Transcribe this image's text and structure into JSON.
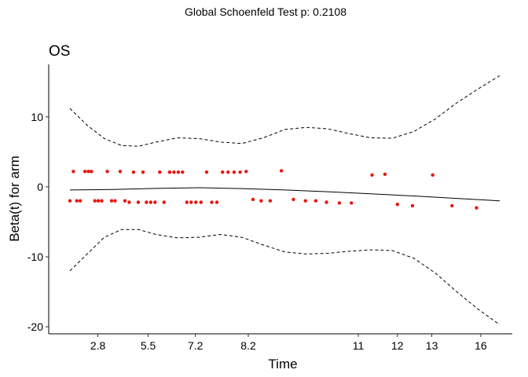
{
  "suptitle": "Global Schoenfeld Test p: 0.2108",
  "chart_data": {
    "type": "scatter",
    "title": "OS",
    "xlabel": "Time",
    "ylabel": "Beta(t) for arm",
    "x_tick_labels": [
      "2.8",
      "5.5",
      "7.2",
      "8.2",
      "11",
      "12",
      "13",
      "16"
    ],
    "y_ticks": [
      -20,
      -10,
      0,
      10
    ],
    "ylim": [
      -21,
      17.5
    ],
    "x_transform_range": [
      0,
      1
    ],
    "x_tick_positions": [
      0.065,
      0.182,
      0.292,
      0.415,
      0.671,
      0.762,
      0.842,
      0.956
    ],
    "grid": false,
    "point_color": "#e8150f",
    "points": [
      {
        "x": 0.0,
        "y": -2.0
      },
      {
        "x": 0.008,
        "y": 2.2
      },
      {
        "x": 0.016,
        "y": -2.0
      },
      {
        "x": 0.024,
        "y": -2.0
      },
      {
        "x": 0.035,
        "y": 2.2
      },
      {
        "x": 0.043,
        "y": 2.2
      },
      {
        "x": 0.05,
        "y": 2.2
      },
      {
        "x": 0.058,
        "y": -2.0
      },
      {
        "x": 0.066,
        "y": -2.0
      },
      {
        "x": 0.074,
        "y": -2.0
      },
      {
        "x": 0.087,
        "y": 2.2
      },
      {
        "x": 0.097,
        "y": -2.0
      },
      {
        "x": 0.105,
        "y": -2.0
      },
      {
        "x": 0.117,
        "y": 2.2
      },
      {
        "x": 0.128,
        "y": -2.0
      },
      {
        "x": 0.138,
        "y": -2.2
      },
      {
        "x": 0.148,
        "y": 2.1
      },
      {
        "x": 0.159,
        "y": -2.2
      },
      {
        "x": 0.17,
        "y": 2.1
      },
      {
        "x": 0.178,
        "y": -2.2
      },
      {
        "x": 0.188,
        "y": -2.2
      },
      {
        "x": 0.198,
        "y": -2.2
      },
      {
        "x": 0.209,
        "y": 2.1
      },
      {
        "x": 0.219,
        "y": -2.2
      },
      {
        "x": 0.232,
        "y": 2.1
      },
      {
        "x": 0.242,
        "y": 2.1
      },
      {
        "x": 0.252,
        "y": 2.1
      },
      {
        "x": 0.262,
        "y": 2.1
      },
      {
        "x": 0.272,
        "y": -2.2
      },
      {
        "x": 0.282,
        "y": -2.2
      },
      {
        "x": 0.293,
        "y": -2.2
      },
      {
        "x": 0.305,
        "y": -2.2
      },
      {
        "x": 0.318,
        "y": 2.1
      },
      {
        "x": 0.33,
        "y": -2.2
      },
      {
        "x": 0.342,
        "y": -2.2
      },
      {
        "x": 0.355,
        "y": 2.1
      },
      {
        "x": 0.368,
        "y": 2.1
      },
      {
        "x": 0.382,
        "y": 2.1
      },
      {
        "x": 0.396,
        "y": 2.1
      },
      {
        "x": 0.41,
        "y": 2.2
      },
      {
        "x": 0.426,
        "y": -1.8
      },
      {
        "x": 0.445,
        "y": -2.0
      },
      {
        "x": 0.466,
        "y": -2.0
      },
      {
        "x": 0.492,
        "y": 2.3
      },
      {
        "x": 0.52,
        "y": -1.8
      },
      {
        "x": 0.548,
        "y": -2.0
      },
      {
        "x": 0.572,
        "y": -2.0
      },
      {
        "x": 0.597,
        "y": -2.2
      },
      {
        "x": 0.627,
        "y": -2.3
      },
      {
        "x": 0.655,
        "y": -2.3
      },
      {
        "x": 0.703,
        "y": 1.7
      },
      {
        "x": 0.733,
        "y": 1.8
      },
      {
        "x": 0.762,
        "y": -2.5
      },
      {
        "x": 0.797,
        "y": -2.7
      },
      {
        "x": 0.844,
        "y": 1.7
      },
      {
        "x": 0.889,
        "y": -2.7
      },
      {
        "x": 0.946,
        "y": -3.0
      }
    ],
    "series": [
      {
        "type": "line",
        "dash": "solid",
        "x": [
          0.0,
          0.1,
          0.2,
          0.3,
          0.4,
          0.5,
          0.6,
          0.7,
          0.8,
          0.9,
          1.0
        ],
        "y": [
          -0.45,
          -0.38,
          -0.22,
          -0.12,
          -0.25,
          -0.45,
          -0.7,
          -1.0,
          -1.3,
          -1.65,
          -2.0
        ]
      },
      {
        "type": "line",
        "dash": "dashed",
        "x": [
          0.0,
          0.04,
          0.08,
          0.12,
          0.16,
          0.2,
          0.25,
          0.3,
          0.35,
          0.4,
          0.45,
          0.5,
          0.55,
          0.6,
          0.65,
          0.7,
          0.75,
          0.8,
          0.85,
          0.9,
          0.95,
          1.0
        ],
        "y": [
          11.2,
          8.8,
          6.9,
          5.9,
          5.8,
          6.4,
          7.0,
          6.9,
          6.4,
          6.2,
          7.0,
          8.2,
          8.5,
          8.3,
          7.6,
          7.0,
          6.95,
          7.9,
          9.7,
          12.0,
          14.0,
          15.9
        ]
      },
      {
        "type": "line",
        "dash": "dashed",
        "x": [
          0.0,
          0.04,
          0.08,
          0.12,
          0.16,
          0.2,
          0.25,
          0.3,
          0.35,
          0.4,
          0.45,
          0.5,
          0.55,
          0.6,
          0.65,
          0.7,
          0.75,
          0.8,
          0.85,
          0.9,
          0.95,
          1.0
        ],
        "y": [
          -12.0,
          -9.6,
          -7.2,
          -6.1,
          -6.1,
          -6.8,
          -7.3,
          -7.2,
          -6.8,
          -7.2,
          -8.3,
          -9.3,
          -9.6,
          -9.5,
          -9.2,
          -9.0,
          -9.1,
          -10.2,
          -12.3,
          -15.0,
          -17.5,
          -19.7
        ]
      }
    ]
  }
}
